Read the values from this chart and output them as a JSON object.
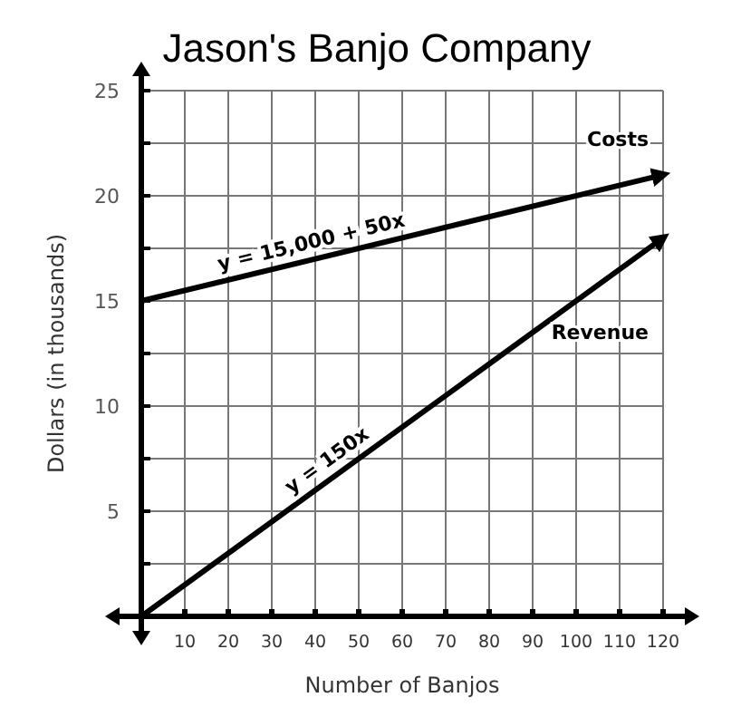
{
  "chart_data": {
    "type": "line",
    "title": "Jason's Banjo Company",
    "xlabel": "Number of Banjos",
    "ylabel": "Dollars (in thousands)",
    "xlim": [
      0,
      120
    ],
    "ylim": [
      0,
      25
    ],
    "xticks": [
      10,
      20,
      30,
      40,
      50,
      60,
      70,
      80,
      90,
      100,
      110,
      120
    ],
    "yticks": [
      {
        "value": 2.5,
        "label": null
      },
      5,
      {
        "value": 7.5,
        "label": null
      },
      10,
      {
        "value": 12.5,
        "label": null
      },
      15,
      {
        "value": 17.5,
        "label": null
      },
      20,
      {
        "value": 22.5,
        "label": null
      },
      25
    ],
    "x": [
      0,
      120
    ],
    "grid": true,
    "legend": false,
    "marker": "none",
    "line_style": "solid",
    "series": [
      {
        "name": "Costs",
        "color": "#000000",
        "values": [
          15,
          21
        ]
      },
      {
        "name": "Revenue",
        "color": "#000000",
        "values": [
          0,
          18
        ]
      }
    ],
    "annotations": [
      {
        "text": "y = 15,000 + 50x",
        "x": 40,
        "y": 17
      },
      {
        "text": "y = 150x",
        "x": 45,
        "y": 6.75
      }
    ]
  }
}
